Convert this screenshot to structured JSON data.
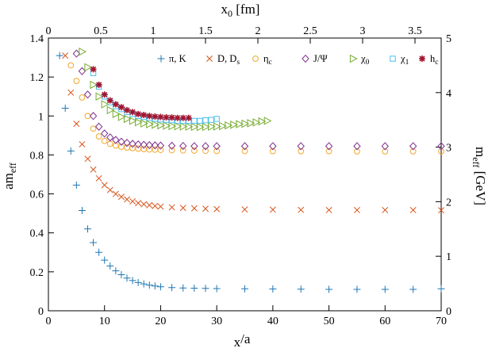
{
  "chart_data": {
    "type": "scatter",
    "xlabel": "x0/a",
    "ylabel": "am_eff",
    "x2label": "x0 [fm]",
    "y2label": "m_eff [GeV]",
    "xlim": [
      0,
      70
    ],
    "ylim": [
      0,
      1.4
    ],
    "x2lim": [
      0,
      3.75
    ],
    "y2lim": [
      0,
      5
    ],
    "xticks": [
      0,
      10,
      20,
      30,
      40,
      50,
      60,
      70
    ],
    "yticks": [
      0,
      0.2,
      0.4,
      0.6,
      0.8,
      1,
      1.2,
      1.4
    ],
    "x2ticks": [
      0,
      0.5,
      1,
      1.5,
      2,
      2.5,
      3,
      3.5
    ],
    "y2ticks": [
      0,
      1,
      2,
      3,
      4,
      5
    ],
    "legend_position": "top",
    "series": [
      {
        "name": "pi_K",
        "label": "π, K",
        "marker": "plus",
        "color": "#1f77b4",
        "x": [
          2,
          3,
          4,
          5,
          6,
          7,
          8,
          9,
          10,
          11,
          12,
          13,
          14,
          15,
          16,
          17,
          18,
          19,
          20,
          22,
          24,
          26,
          28,
          30,
          35,
          40,
          45,
          50,
          55,
          60,
          65,
          70
        ],
        "y": [
          1.31,
          1.04,
          0.82,
          0.645,
          0.515,
          0.42,
          0.35,
          0.3,
          0.26,
          0.23,
          0.205,
          0.185,
          0.168,
          0.155,
          0.145,
          0.138,
          0.132,
          0.127,
          0.123,
          0.119,
          0.117,
          0.116,
          0.115,
          0.114,
          0.113,
          0.112,
          0.111,
          0.11,
          0.11,
          0.11,
          0.11,
          0.113
        ]
      },
      {
        "name": "D_Ds",
        "label": "D, D",
        "label_sub": "s",
        "marker": "x",
        "color": "#d95319",
        "x": [
          3,
          4,
          5,
          6,
          7,
          8,
          9,
          10,
          11,
          12,
          13,
          14,
          15,
          16,
          17,
          18,
          19,
          20,
          22,
          24,
          26,
          28,
          30,
          35,
          40,
          45,
          50,
          55,
          60,
          65,
          70
        ],
        "y": [
          1.31,
          1.12,
          0.96,
          0.855,
          0.78,
          0.725,
          0.68,
          0.645,
          0.62,
          0.6,
          0.585,
          0.572,
          0.562,
          0.553,
          0.547,
          0.542,
          0.538,
          0.535,
          0.531,
          0.528,
          0.526,
          0.524,
          0.522,
          0.52,
          0.519,
          0.518,
          0.517,
          0.517,
          0.517,
          0.517,
          0.516
        ]
      },
      {
        "name": "eta_c",
        "label": "η",
        "label_sub": "c",
        "marker": "circle",
        "color": "#f2a72b",
        "x": [
          4,
          5,
          6,
          7,
          8,
          9,
          10,
          11,
          12,
          13,
          14,
          15,
          16,
          17,
          18,
          19,
          20,
          22,
          24,
          26,
          28,
          30,
          35,
          40,
          45,
          50,
          55,
          60,
          65,
          70
        ],
        "y": [
          1.26,
          1.18,
          1.095,
          1.0,
          0.935,
          0.895,
          0.872,
          0.857,
          0.848,
          0.842,
          0.838,
          0.835,
          0.832,
          0.83,
          0.828,
          0.827,
          0.826,
          0.824,
          0.823,
          0.822,
          0.821,
          0.82,
          0.82,
          0.819,
          0.819,
          0.819,
          0.818,
          0.818,
          0.818,
          0.818
        ]
      },
      {
        "name": "J_Psi",
        "label": "J/Ψ",
        "marker": "diamond",
        "color": "#7e2f8e",
        "x": [
          5,
          6,
          7,
          8,
          9,
          10,
          11,
          12,
          13,
          14,
          15,
          16,
          17,
          18,
          19,
          20,
          22,
          24,
          26,
          28,
          30,
          35,
          40,
          45,
          50,
          55,
          60,
          65,
          70
        ],
        "y": [
          1.32,
          1.23,
          1.11,
          1.0,
          0.945,
          0.91,
          0.89,
          0.877,
          0.868,
          0.862,
          0.857,
          0.854,
          0.852,
          0.85,
          0.849,
          0.848,
          0.847,
          0.846,
          0.845,
          0.845,
          0.845,
          0.845,
          0.845,
          0.845,
          0.845,
          0.845,
          0.845,
          0.845,
          0.845
        ]
      },
      {
        "name": "chi_0",
        "label": "χ",
        "label_sub": "0",
        "marker": "triangle",
        "color": "#77ac30",
        "x": [
          6,
          7,
          8,
          9,
          10,
          11,
          12,
          13,
          14,
          15,
          16,
          17,
          18,
          19,
          20,
          21,
          22,
          23,
          24,
          25,
          26,
          27,
          28,
          29,
          30,
          31,
          32,
          33,
          34,
          35,
          36,
          37,
          38,
          39
        ],
        "y": [
          1.33,
          1.25,
          1.16,
          1.1,
          1.06,
          1.03,
          1.01,
          0.995,
          0.985,
          0.975,
          0.968,
          0.962,
          0.958,
          0.955,
          0.952,
          0.95,
          0.948,
          0.947,
          0.946,
          0.945,
          0.944,
          0.943,
          0.944,
          0.945,
          0.946,
          0.948,
          0.952,
          0.955,
          0.958,
          0.96,
          0.963,
          0.967,
          0.972,
          0.975
        ]
      },
      {
        "name": "chi_1",
        "label": "χ",
        "label_sub": "1",
        "marker": "square",
        "color": "#4dbeee",
        "x": [
          8,
          9,
          10,
          11,
          12,
          13,
          14,
          15,
          16,
          17,
          18,
          19,
          20,
          21,
          22,
          23,
          24,
          25,
          26,
          27,
          28,
          29,
          30
        ],
        "y": [
          1.22,
          1.15,
          1.1,
          1.07,
          1.05,
          1.035,
          1.02,
          1.01,
          1.0,
          0.995,
          0.99,
          0.985,
          0.982,
          0.98,
          0.978,
          0.976,
          0.975,
          0.975,
          0.975,
          0.975,
          0.978,
          0.98,
          0.985
        ]
      },
      {
        "name": "h_c",
        "label": "h",
        "label_sub": "c",
        "marker": "star",
        "color": "#a2142f",
        "x": [
          8,
          9,
          10,
          11,
          12,
          13,
          14,
          15,
          16,
          17,
          18,
          19,
          20,
          21,
          22,
          23,
          24,
          25
        ],
        "y": [
          1.24,
          1.16,
          1.11,
          1.08,
          1.06,
          1.045,
          1.03,
          1.02,
          1.01,
          1.005,
          1.0,
          0.997,
          0.995,
          0.993,
          0.992,
          0.99,
          0.99,
          0.99
        ]
      }
    ]
  }
}
